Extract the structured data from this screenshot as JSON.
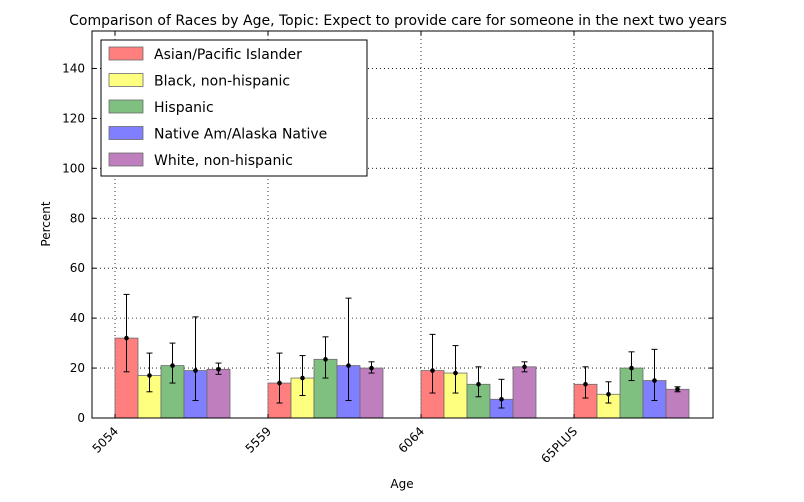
{
  "chart_data": {
    "type": "bar",
    "title": "Comparison of Races by Age, Topic: Expect to provide care for someone in the next two years",
    "xlabel": "Age",
    "ylabel": "Percent",
    "ylim": [
      0,
      155
    ],
    "yticks": [
      0,
      20,
      40,
      60,
      80,
      100,
      120,
      140
    ],
    "grid": true,
    "legend_position": "top-left",
    "categories": [
      "5054",
      "5559",
      "6064",
      "65PLUS"
    ],
    "series": [
      {
        "name": "Asian/Pacific Islander",
        "color": "#ff7f7f",
        "values": [
          32,
          14,
          19,
          13.5
        ],
        "err_low": [
          18.5,
          6,
          10,
          8
        ],
        "err_high": [
          49.5,
          26,
          33.5,
          20.5
        ]
      },
      {
        "name": "Black, non-hispanic",
        "color": "#ffff7f",
        "values": [
          17,
          16,
          18,
          9.5
        ],
        "err_low": [
          10.5,
          9,
          10,
          6
        ],
        "err_high": [
          26,
          25,
          29,
          14.5
        ]
      },
      {
        "name": "Hispanic",
        "color": "#7fbf7f",
        "values": [
          21,
          23.5,
          13.5,
          20
        ],
        "err_low": [
          14,
          16,
          8.5,
          15
        ],
        "err_high": [
          30,
          32.5,
          20.5,
          26.5
        ]
      },
      {
        "name": "Native Am/Alaska Native",
        "color": "#7f7fff",
        "values": [
          19,
          21,
          7.5,
          15
        ],
        "err_low": [
          7,
          7,
          4,
          7
        ],
        "err_high": [
          40.5,
          48,
          15.5,
          27.5
        ]
      },
      {
        "name": "White, non-hispanic",
        "color": "#bf7fbf",
        "values": [
          19.5,
          20,
          20.5,
          11.5
        ],
        "err_low": [
          17.5,
          18,
          18.5,
          10.5
        ],
        "err_high": [
          22,
          22.5,
          22.5,
          12.5
        ]
      }
    ]
  }
}
